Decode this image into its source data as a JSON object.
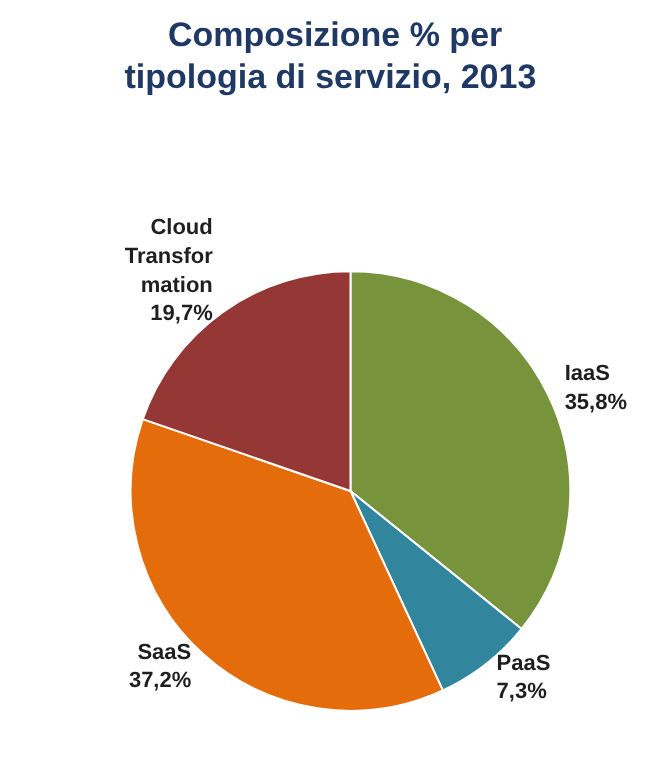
{
  "chart_data": {
    "type": "pie",
    "title": "Composizione % per\ntipologia  di servizio, 2013",
    "categories": [
      "IaaS",
      "PaaS",
      "SaaS",
      "Cloud\nTransfor\nmation"
    ],
    "values": [
      35.8,
      7.3,
      37.2,
      19.7
    ],
    "value_labels": [
      "35,8%",
      "7,3%",
      "37,2%",
      "19,7%"
    ],
    "colors": [
      "#77933c",
      "#31859c",
      "#e46c0a",
      "#953735"
    ],
    "legend": false
  }
}
